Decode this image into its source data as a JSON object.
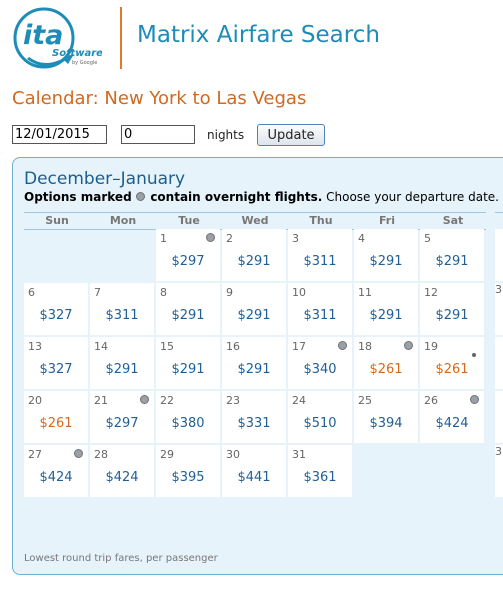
{
  "header": {
    "title": "Matrix Airfare Search",
    "logo": {
      "main": "ita",
      "sub": "Software",
      "by": "by Google"
    }
  },
  "calendar_title": "Calendar: New York to Las Vegas",
  "form": {
    "date_value": "12/01/2015",
    "nights_value": "0",
    "nights_label": "nights",
    "update_label": "Update"
  },
  "panel": {
    "title": "December–January",
    "legend": {
      "prefix": "Options marked",
      "bold": "contain overnight flights.",
      "suffix": "Choose your departure date."
    },
    "footnote": "Lowest round trip fares, per passenger"
  },
  "days_of_week": [
    "Sun",
    "Mon",
    "Tue",
    "Wed",
    "Thu",
    "Fri",
    "Sat"
  ],
  "first_weekday": 2,
  "days": [
    {
      "day": "1",
      "price": "$297",
      "overnight": true
    },
    {
      "day": "2",
      "price": "$291"
    },
    {
      "day": "3",
      "price": "$311"
    },
    {
      "day": "4",
      "price": "$291"
    },
    {
      "day": "5",
      "price": "$291"
    },
    {
      "day": "6",
      "price": "$327"
    },
    {
      "day": "7",
      "price": "$311"
    },
    {
      "day": "8",
      "price": "$291"
    },
    {
      "day": "9",
      "price": "$291"
    },
    {
      "day": "10",
      "price": "$311"
    },
    {
      "day": "11",
      "price": "$291"
    },
    {
      "day": "12",
      "price": "$291"
    },
    {
      "day": "13",
      "price": "$327"
    },
    {
      "day": "14",
      "price": "$291"
    },
    {
      "day": "15",
      "price": "$291"
    },
    {
      "day": "16",
      "price": "$291"
    },
    {
      "day": "17",
      "price": "$340",
      "overnight": true
    },
    {
      "day": "18",
      "price": "$261",
      "overnight": true,
      "highlight": true
    },
    {
      "day": "19",
      "price": "$261",
      "highlight": true,
      "dot": true
    },
    {
      "day": "20",
      "price": "$261",
      "highlight": true
    },
    {
      "day": "21",
      "price": "$297",
      "overnight": true
    },
    {
      "day": "22",
      "price": "$380"
    },
    {
      "day": "23",
      "price": "$331"
    },
    {
      "day": "24",
      "price": "$510"
    },
    {
      "day": "25",
      "price": "$394"
    },
    {
      "day": "26",
      "price": "$424",
      "overnight": true
    },
    {
      "day": "27",
      "price": "$424",
      "overnight": true
    },
    {
      "day": "28",
      "price": "$424"
    },
    {
      "day": "29",
      "price": "$395"
    },
    {
      "day": "30",
      "price": "$441"
    },
    {
      "day": "31",
      "price": "$361"
    }
  ],
  "next_month_days": [
    "",
    "3",
    "",
    "",
    "3"
  ],
  "colors": {
    "title": "#1d8cb8",
    "accent_orange": "#d2691e",
    "price_blue": "#1f5f95",
    "panel_bg": "#e6f3fa",
    "panel_border": "#6fb0d0"
  }
}
